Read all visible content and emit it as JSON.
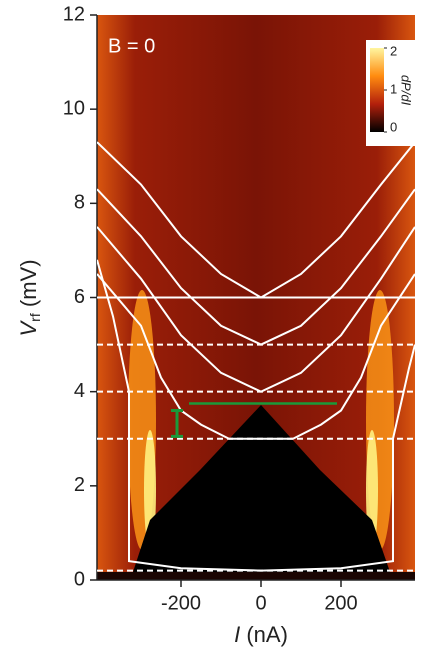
{
  "chart_data": {
    "type": "heatmap",
    "annotation": "B = 0",
    "xlabel": [
      "I",
      " (nA)"
    ],
    "ylabel": [
      "V",
      "rf",
      " (mV)"
    ],
    "xlim": [
      -410,
      385
    ],
    "ylim": [
      0,
      12
    ],
    "xticks": [
      -200,
      0,
      200
    ],
    "yticks": [
      0,
      2,
      4,
      6,
      8,
      10,
      12
    ],
    "colorbar": {
      "label": "dP/dI",
      "lim": [
        0,
        2
      ],
      "ticks": [
        0,
        1,
        2
      ],
      "colors": [
        "#000000",
        "#b3200c",
        "#ff8c10",
        "#fff6a0"
      ]
    },
    "hlines": [
      {
        "y": 6,
        "style": "solid"
      },
      {
        "y": 5,
        "style": "dashed"
      },
      {
        "y": 4,
        "style": "dashed"
      },
      {
        "y": 3,
        "style": "dashed"
      },
      {
        "y": 0.2,
        "style": "dashed"
      }
    ],
    "series": [
      {
        "color": "#ffffff",
        "x": [
          -410,
          -300,
          -200,
          -100,
          0,
          100,
          200,
          300,
          385
        ],
        "values": [
          9.3,
          8.4,
          7.3,
          6.5,
          6.0,
          6.5,
          7.3,
          8.4,
          9.3
        ]
      },
      {
        "color": "#ffffff",
        "x": [
          -410,
          -300,
          -200,
          -100,
          0,
          100,
          200,
          300,
          385
        ],
        "values": [
          8.3,
          7.3,
          6.2,
          5.4,
          5.0,
          5.4,
          6.2,
          7.3,
          8.3
        ]
      },
      {
        "color": "#ffffff",
        "x": [
          -410,
          -300,
          -200,
          -100,
          0,
          100,
          200,
          300,
          385
        ],
        "values": [
          7.5,
          6.4,
          5.2,
          4.4,
          4.0,
          4.4,
          5.2,
          6.4,
          7.5
        ]
      },
      {
        "color": "#ffffff",
        "x": [
          -410,
          -300,
          -250,
          -200,
          -150,
          -80,
          0,
          80,
          150,
          200,
          250,
          300,
          385
        ],
        "values": [
          6.5,
          5.4,
          4.3,
          3.6,
          3.3,
          3.0,
          3.0,
          3.0,
          3.3,
          3.6,
          4.3,
          5.4,
          6.5
        ]
      },
      {
        "color": "#ffffff",
        "x": [
          -410,
          -370,
          -330,
          -330,
          -200,
          0,
          200,
          330,
          330,
          370,
          385
        ],
        "values": [
          6.8,
          5.6,
          4.0,
          0.4,
          0.25,
          0.2,
          0.25,
          0.4,
          3.0,
          4.5,
          5.0
        ]
      }
    ],
    "green_line": {
      "color": "#1a9a3a",
      "x": [
        -180,
        190
      ],
      "y": 3.75
    },
    "green_bar": {
      "color": "#1a9a3a",
      "x": -210,
      "y": [
        3.05,
        3.6
      ]
    }
  }
}
